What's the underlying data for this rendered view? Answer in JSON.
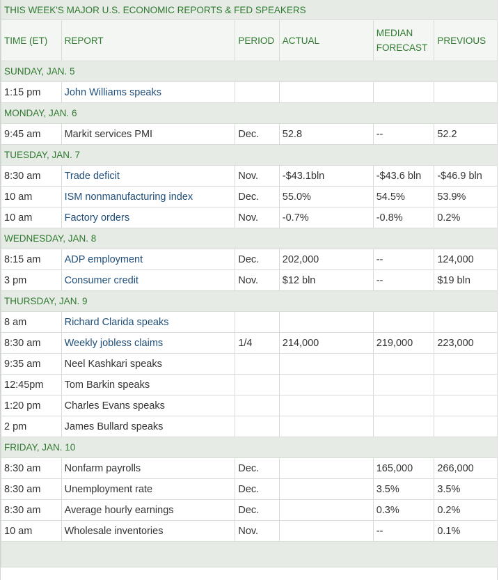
{
  "title": "THIS WEEK'S MAJOR U.S. ECONOMIC REPORTS & FED SPEAKERS",
  "columns": {
    "time": "TIME (ET)",
    "report": "REPORT",
    "period": "PERIOD",
    "actual": "ACTUAL",
    "forecast_line1": "MEDIAN",
    "forecast_line2": "FORECAST",
    "previous": "PREVIOUS"
  },
  "days": [
    {
      "label": "SUNDAY, JAN. 5",
      "rows": [
        {
          "time": "1:15 pm",
          "report": "John Williams speaks",
          "link": true,
          "period": "",
          "actual": "",
          "forecast": "",
          "previous": ""
        }
      ]
    },
    {
      "label": "MONDAY, JAN. 6",
      "rows": [
        {
          "time": "9:45 am",
          "report": "Markit services PMI",
          "link": false,
          "period": "Dec.",
          "actual": "52.8",
          "forecast": "--",
          "previous": "52.2"
        }
      ]
    },
    {
      "label": "TUESDAY, JAN. 7",
      "rows": [
        {
          "time": "8:30 am",
          "report": "Trade deficit",
          "link": true,
          "period": "Nov.",
          "actual": "-$43.1bln",
          "forecast": "-$43.6 bln",
          "previous": "-$46.9 bln"
        },
        {
          "time": "10 am",
          "report": "ISM nonmanufacturing index",
          "link": true,
          "period": "Dec.",
          "actual": "55.0%",
          "forecast": "54.5%",
          "previous": "53.9%"
        },
        {
          "time": "10 am",
          "report": "Factory orders",
          "link": true,
          "period": "Nov.",
          "actual": "-0.7%",
          "forecast": "-0.8%",
          "previous": "0.2%"
        }
      ]
    },
    {
      "label": "WEDNESDAY, JAN. 8",
      "rows": [
        {
          "time": "8:15 am",
          "report": "ADP employment",
          "link": true,
          "period": "Dec.",
          "actual": "202,000",
          "forecast": "--",
          "previous": "124,000"
        },
        {
          "time": "3 pm",
          "report": "Consumer credit",
          "link": true,
          "period": "Nov.",
          "actual": "$12 bln",
          "forecast": "--",
          "previous": "$19 bln"
        }
      ]
    },
    {
      "label": "THURSDAY, JAN. 9",
      "rows": [
        {
          "time": "8 am",
          "report": "Richard Clarida speaks",
          "link": true,
          "period": "",
          "actual": "",
          "forecast": "",
          "previous": ""
        },
        {
          "time": "8:30 am",
          "report": "Weekly jobless claims",
          "link": true,
          "period": "1/4",
          "actual": "214,000",
          "forecast": "219,000",
          "previous": "223,000"
        },
        {
          "time": "9:35 am",
          "report": "Neel Kashkari speaks",
          "link": false,
          "period": "",
          "actual": "",
          "forecast": "",
          "previous": ""
        },
        {
          "time": "12:45pm",
          "report": "Tom Barkin speaks",
          "link": false,
          "period": "",
          "actual": "",
          "forecast": "",
          "previous": ""
        },
        {
          "time": "1:20 pm",
          "report": "Charles Evans speaks",
          "link": false,
          "period": "",
          "actual": "",
          "forecast": "",
          "previous": ""
        },
        {
          "time": "2 pm",
          "report": "James Bullard speaks",
          "link": false,
          "period": "",
          "actual": "",
          "forecast": "",
          "previous": ""
        }
      ]
    },
    {
      "label": "FRIDAY, JAN. 10",
      "rows": [
        {
          "time": "8:30 am",
          "report": "Nonfarm payrolls",
          "link": false,
          "period": "Dec.",
          "actual": "",
          "forecast": "165,000",
          "previous": "266,000"
        },
        {
          "time": "8:30 am",
          "report": "Unemployment rate",
          "link": false,
          "period": "Dec.",
          "actual": "",
          "forecast": "3.5%",
          "previous": "3.5%"
        },
        {
          "time": "8:30 am",
          "report": "Average hourly earnings",
          "link": false,
          "period": "Dec.",
          "actual": "",
          "forecast": "0.3%",
          "previous": "0.2%"
        },
        {
          "time": "10 am",
          "report": "Wholesale inventories",
          "link": false,
          "period": "Nov.",
          "actual": "",
          "forecast": "--",
          "previous": "0.1%"
        }
      ]
    }
  ],
  "colors": {
    "green_text": "#2f7a2f",
    "link_text": "#1f4e79",
    "band_bg": "#e6ebe6"
  }
}
